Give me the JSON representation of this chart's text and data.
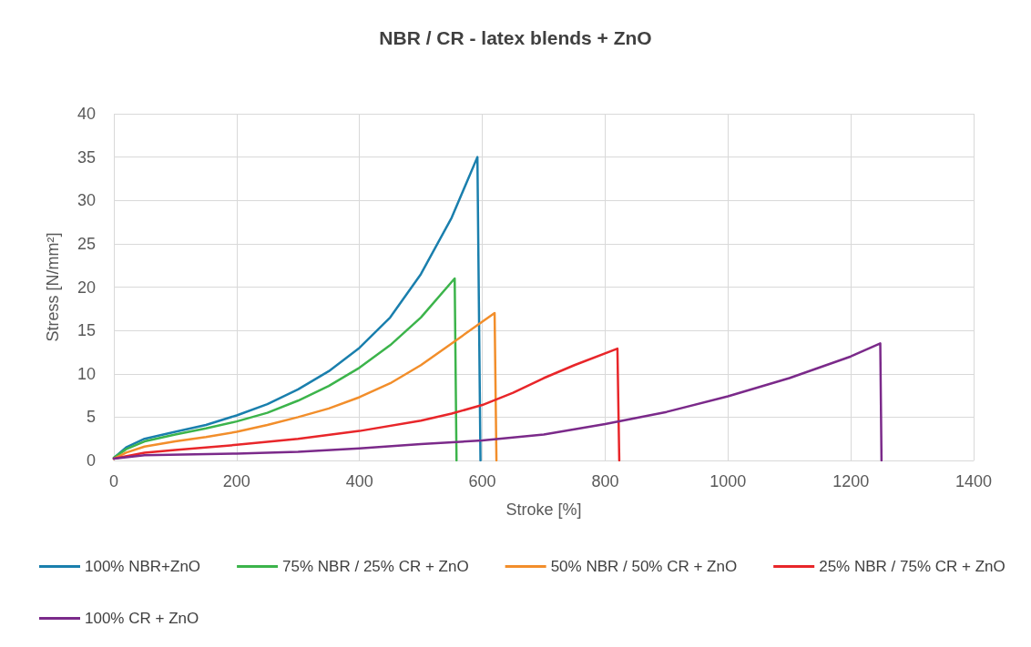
{
  "chart_data": {
    "type": "line",
    "title": "NBR / CR - latex blends + ZnO",
    "xlabel": "Stroke [%]",
    "ylabel": "Stress [N/mm²]",
    "xlim": [
      0,
      1400
    ],
    "xticks": [
      0,
      200,
      400,
      600,
      800,
      1000,
      1200,
      1400
    ],
    "ylim": [
      0,
      40
    ],
    "yticks": [
      0,
      5,
      10,
      15,
      20,
      25,
      30,
      35,
      40
    ],
    "grid": true,
    "legend": "bottom",
    "marker": "none",
    "line_style": "solid",
    "series": [
      {
        "name": "100% NBR+ZnO",
        "color": "#1a7fad",
        "x": [
          0,
          20,
          50,
          100,
          150,
          200,
          250,
          300,
          350,
          400,
          450,
          500,
          550,
          592,
          597
        ],
        "values": [
          0.3,
          1.5,
          2.5,
          3.3,
          4.1,
          5.2,
          6.5,
          8.2,
          10.3,
          13,
          16.5,
          21.5,
          28,
          35,
          0
        ]
      },
      {
        "name": "75% NBR / 25% CR + ZnO",
        "color": "#3cb44b",
        "x": [
          0,
          20,
          50,
          100,
          150,
          200,
          250,
          300,
          350,
          400,
          450,
          500,
          555,
          558
        ],
        "values": [
          0.3,
          1.3,
          2.2,
          3,
          3.7,
          4.5,
          5.5,
          6.9,
          8.6,
          10.7,
          13.3,
          16.5,
          21,
          0
        ]
      },
      {
        "name": "50% NBR / 50% CR + ZnO",
        "color": "#f28e2b",
        "x": [
          0,
          20,
          50,
          100,
          150,
          200,
          250,
          300,
          350,
          400,
          450,
          500,
          550,
          600,
          620,
          623
        ],
        "values": [
          0.2,
          0.9,
          1.6,
          2.2,
          2.7,
          3.3,
          4.1,
          5,
          6,
          7.3,
          8.9,
          11,
          13.5,
          16,
          17,
          0
        ]
      },
      {
        "name": "25% NBR / 75% CR + ZnO",
        "color": "#e8262a",
        "x": [
          0,
          50,
          100,
          200,
          300,
          400,
          500,
          550,
          600,
          650,
          700,
          750,
          820,
          823
        ],
        "values": [
          0.2,
          0.9,
          1.2,
          1.8,
          2.5,
          3.4,
          4.6,
          5.4,
          6.4,
          7.8,
          9.5,
          11,
          12.9,
          0
        ]
      },
      {
        "name": "100% CR + ZnO",
        "color": "#7b2a8a",
        "x": [
          0,
          50,
          200,
          300,
          400,
          500,
          600,
          700,
          800,
          900,
          1000,
          1100,
          1200,
          1248,
          1250
        ],
        "values": [
          0.2,
          0.6,
          0.8,
          1.0,
          1.4,
          1.9,
          2.3,
          3,
          4.2,
          5.6,
          7.4,
          9.5,
          12,
          13.5,
          0
        ]
      }
    ]
  }
}
